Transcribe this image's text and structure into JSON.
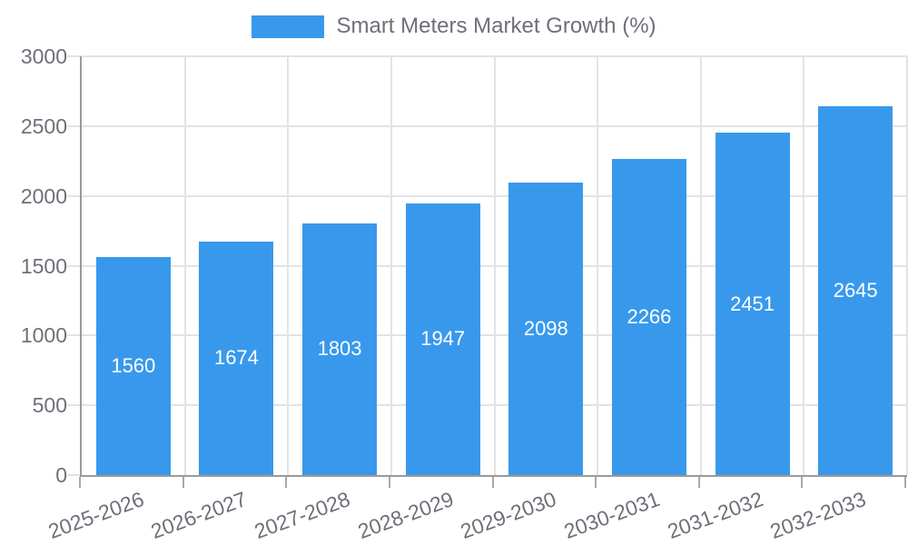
{
  "chart_data": {
    "type": "bar",
    "title": "Smart Meters Market Growth (%)",
    "legend": [
      "Smart Meters Market Growth (%)"
    ],
    "legend_position": "top-center",
    "categories": [
      "2025-2026",
      "2026-2027",
      "2027-2028",
      "2028-2029",
      "2029-2030",
      "2030-2031",
      "2031-2032",
      "2032-2033"
    ],
    "values": [
      1560,
      1674,
      1803,
      1947,
      2098,
      2266,
      2451,
      2645
    ],
    "xlabel": "",
    "ylabel": "",
    "ylim": [
      0,
      3000
    ],
    "yticks": [
      0,
      500,
      1000,
      1500,
      2000,
      2500,
      3000
    ],
    "grid": true,
    "bar_value_labels_visible": true,
    "x_label_rotation_deg": -20,
    "colors": {
      "bar": "#3899ec",
      "bar_value_label": "#ffffff",
      "axis_line": "#9a9a9a",
      "x_tick": "#a8a8a8",
      "grid_line": "#e3e3e3",
      "text": "#6e7079"
    }
  }
}
